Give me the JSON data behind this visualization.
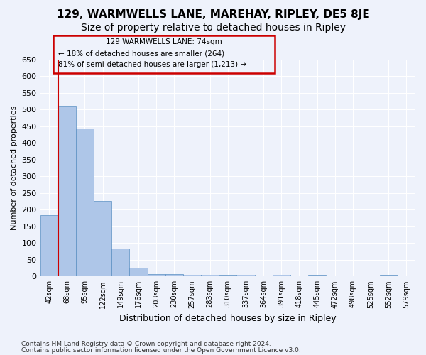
{
  "title": "129, WARMWELLS LANE, MAREHAY, RIPLEY, DE5 8JE",
  "subtitle": "Size of property relative to detached houses in Ripley",
  "xlabel": "Distribution of detached houses by size in Ripley",
  "ylabel": "Number of detached properties",
  "footer_line1": "Contains HM Land Registry data © Crown copyright and database right 2024.",
  "footer_line2": "Contains public sector information licensed under the Open Government Licence v3.0.",
  "annotation_line1": "129 WARMWELLS LANE: 74sqm",
  "annotation_line2": "← 18% of detached houses are smaller (264)",
  "annotation_line3": "81% of semi-detached houses are larger (1,213) →",
  "bar_labels": [
    "42sqm",
    "68sqm",
    "95sqm",
    "122sqm",
    "149sqm",
    "176sqm",
    "203sqm",
    "230sqm",
    "257sqm",
    "283sqm",
    "310sqm",
    "337sqm",
    "364sqm",
    "391sqm",
    "418sqm",
    "445sqm",
    "472sqm",
    "498sqm",
    "525sqm",
    "552sqm",
    "579sqm"
  ],
  "bar_values": [
    183,
    512,
    443,
    226,
    84,
    27,
    8,
    7,
    5,
    4,
    3,
    5,
    0,
    5,
    0,
    3,
    0,
    0,
    0,
    3,
    0
  ],
  "bar_color": "#aec6e8",
  "bar_edge_color": "#5a8fc2",
  "vline_color": "#cc0000",
  "vline_x_index": 1,
  "background_color": "#eef2fb",
  "grid_color": "#ffffff",
  "ylim": [
    0,
    650
  ],
  "yticks": [
    0,
    50,
    100,
    150,
    200,
    250,
    300,
    350,
    400,
    450,
    500,
    550,
    600,
    650
  ],
  "annotation_box_color": "#cc0000",
  "title_fontsize": 11,
  "subtitle_fontsize": 10
}
